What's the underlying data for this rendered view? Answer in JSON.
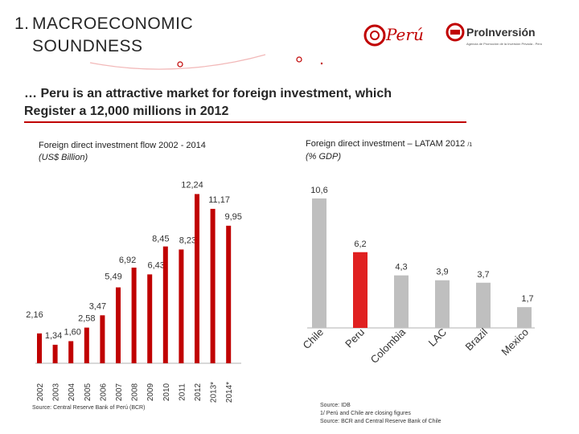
{
  "header": {
    "number": "1.",
    "title_line1": "MACROECONOMIC",
    "title_line2": "SOUNDNESS",
    "subtitle_line1": "… Peru is an attractive market for foreign investment, which",
    "subtitle_line2": "Register a 12,000 millions  in 2012"
  },
  "logos": {
    "peru_text": "Perú",
    "proinversion_text": "ProInversión",
    "proinversion_tagline": "Agencia de Promoción de la Inversión Privada - Perú"
  },
  "colors": {
    "accent": "#c00000",
    "bar": "#c00000",
    "bar_highlight": "#e02020",
    "bar_gray": "#bfbfbf"
  },
  "chart_data": [
    {
      "type": "bar",
      "title": "Foreign direct investment flow  2002 - 2014",
      "unit": "(US$ Billion)",
      "categories": [
        "2002",
        "2003",
        "2004",
        "2005",
        "2006",
        "2007",
        "2008",
        "2009",
        "2010",
        "2011",
        "2012",
        "2013*",
        "2014*"
      ],
      "values": [
        2.16,
        1.34,
        1.6,
        2.58,
        3.47,
        5.49,
        6.92,
        6.43,
        8.45,
        8.23,
        12.24,
        11.17,
        9.95
      ],
      "labels": [
        "2,16",
        "1,34",
        "1,60",
        "2,58",
        "3,47",
        "5,49",
        "6,92",
        "6,43",
        "8,45",
        "8,23",
        "12,24",
        "11,17",
        "9,95"
      ],
      "source": "Source: Central Reserve Bank of Perú (BCR)"
    },
    {
      "type": "bar",
      "title": "Foreign direct investment – LATAM 2012",
      "title_footnote": "/1",
      "unit": "(% GDP)",
      "categories": [
        "Chile",
        "Peru",
        "Colombia",
        "LAC",
        "Brazil",
        "Mexico"
      ],
      "values": [
        10.6,
        6.2,
        4.3,
        3.9,
        3.7,
        1.7
      ],
      "labels": [
        "10,6",
        "6,2",
        "4,3",
        "3,9",
        "3,7",
        "1,7"
      ],
      "highlight": "Peru",
      "source_lines": [
        "Source: IDB",
        "1/ Perú and Chile are closing figures",
        "Source:  BCR  and Central Reserve Bank of Chile"
      ]
    }
  ]
}
